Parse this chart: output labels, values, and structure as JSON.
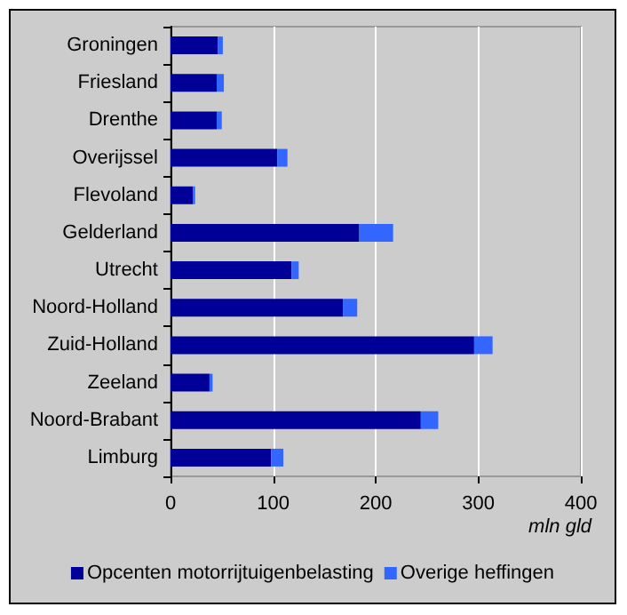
{
  "chart_data": {
    "type": "bar",
    "orientation": "horizontal",
    "stacked": true,
    "categories": [
      "Groningen",
      "Friesland",
      "Drenthe",
      "Overijssel",
      "Flevoland",
      "Gelderland",
      "Utrecht",
      "Noord-Holland",
      "Zuid-Holland",
      "Zeeland",
      "Noord-Brabant",
      "Limburg"
    ],
    "series": [
      {
        "name": "Opcenten motorrijtuigenbelasting",
        "color": "#000099",
        "values": [
          46,
          45,
          45,
          104,
          22,
          184,
          118,
          168,
          296,
          38,
          244,
          98
        ]
      },
      {
        "name": "Overige heffingen",
        "color": "#3366ff",
        "values": [
          5,
          7,
          5,
          10,
          2,
          33,
          7,
          14,
          18,
          3,
          17,
          12
        ]
      }
    ],
    "xlim": [
      0,
      400
    ],
    "xticks": [
      0,
      100,
      200,
      300,
      400
    ],
    "xlabel": "mln gld",
    "grid": "x",
    "legend": "bottom"
  }
}
